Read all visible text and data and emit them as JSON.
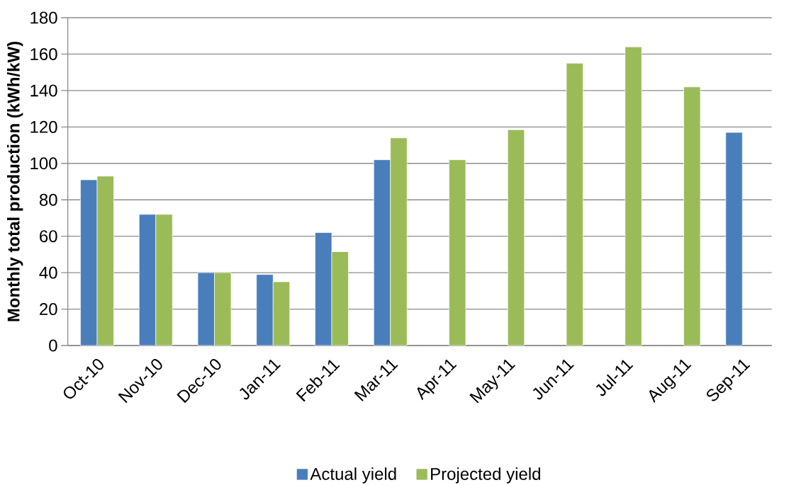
{
  "chart_data": {
    "type": "bar",
    "ylabel": "Monthly total production (kWh/kW)",
    "categories": [
      "Oct-10",
      "Nov-10",
      "Dec-10",
      "Jan-11",
      "Feb-11",
      "Mar-11",
      "Apr-11",
      "May-11",
      "Jun-11",
      "Jul-11",
      "Aug-11",
      "Sep-11"
    ],
    "series": [
      {
        "name": "Actual yield",
        "color": "#4a7ebb",
        "values": [
          91,
          72,
          40,
          39,
          62,
          102,
          null,
          null,
          null,
          null,
          null,
          117
        ]
      },
      {
        "name": "Projected yield",
        "color": "#9bbb59",
        "values": [
          93,
          72,
          40,
          35,
          51.5,
          114,
          102,
          118.5,
          155,
          164,
          142,
          null
        ]
      }
    ],
    "ylim": [
      0,
      180
    ],
    "yticks": [
      0,
      20,
      40,
      60,
      80,
      100,
      120,
      140,
      160,
      180
    ],
    "grid": "y",
    "legend": "bottom"
  }
}
